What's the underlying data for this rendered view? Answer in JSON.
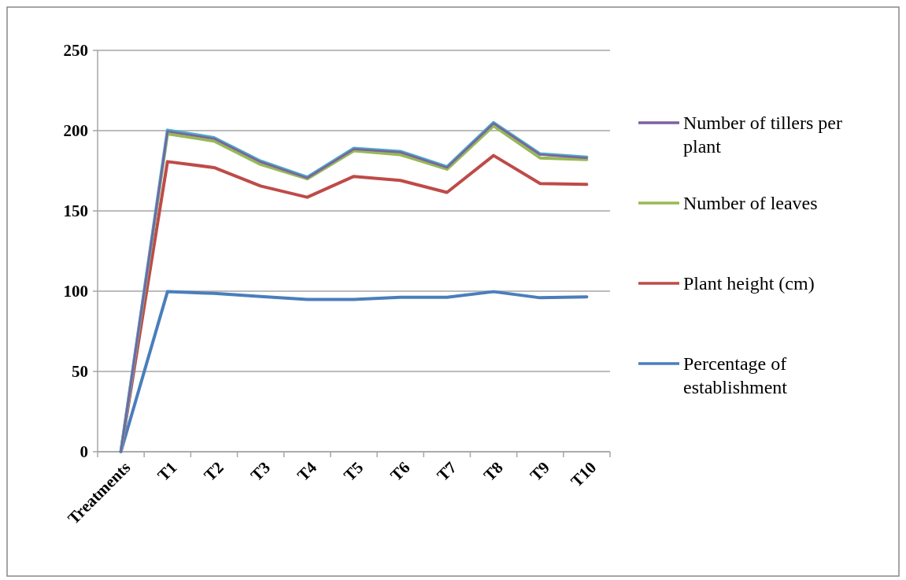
{
  "chart_data": {
    "type": "line",
    "categories": [
      "Treatments",
      "T1",
      "T2",
      "T3",
      "T4",
      "T5",
      "T6",
      "T7",
      "T8",
      "T9",
      "T10"
    ],
    "series": [
      {
        "name": "Percentage of establishment",
        "color": "#4a7ebb",
        "values": [
          0,
          99.7,
          98.6,
          96.7,
          94.8,
          94.8,
          96.2,
          96.2,
          99.7,
          95.9,
          96.5
        ]
      },
      {
        "name": "Plant height (cm)",
        "color": "#be4b48",
        "values": [
          0,
          180.7,
          177,
          165.5,
          158.5,
          171.5,
          169,
          161.5,
          184.5,
          167,
          166.5
        ]
      },
      {
        "name": "Number of leaves",
        "color": "#98b954",
        "values": [
          0,
          198,
          193.5,
          179,
          170,
          187.5,
          185,
          176,
          203,
          183,
          182
        ]
      },
      {
        "color": "#4bacc6",
        "values": [
          0,
          200.3,
          195.6,
          181,
          171,
          189,
          187,
          177.5,
          205,
          185.5,
          183.5
        ]
      },
      {
        "name": "Number of tillers per plant",
        "color": "#7d60a0",
        "values": [
          0,
          199.5,
          195,
          180.5,
          170.5,
          188.5,
          186.5,
          177,
          204.5,
          185,
          183
        ]
      }
    ],
    "ylim": [
      0,
      250
    ],
    "yticks": [
      0,
      50,
      100,
      150,
      200,
      250
    ],
    "grid": "y",
    "legend": "right",
    "marker": "none",
    "line_style": "solid"
  }
}
